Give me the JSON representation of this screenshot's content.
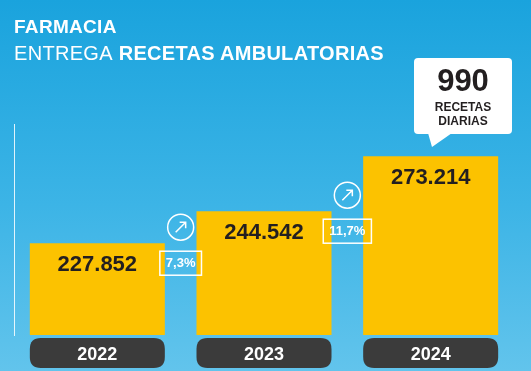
{
  "chart_data": {
    "type": "bar",
    "title": "FARMACIA",
    "subtitle": "ENTREGA RECETAS AMBULATORIAS",
    "categories": [
      "2022",
      "2023",
      "2024"
    ],
    "values": [
      227852,
      244542,
      273214
    ],
    "value_labels": [
      "227.852",
      "244.542",
      "273.214"
    ],
    "color": "#fcc200",
    "ylim": [
      180000,
      290000
    ],
    "grid": false,
    "data_labels": true,
    "tick_labels": "x",
    "growth_labels": [
      {
        "value": 7.3,
        "label": "7,3%"
      },
      {
        "value": 11.7,
        "label": "11,7%"
      }
    ],
    "callout": {
      "value": 990,
      "label": "RECETAS DIARIAS"
    }
  }
}
